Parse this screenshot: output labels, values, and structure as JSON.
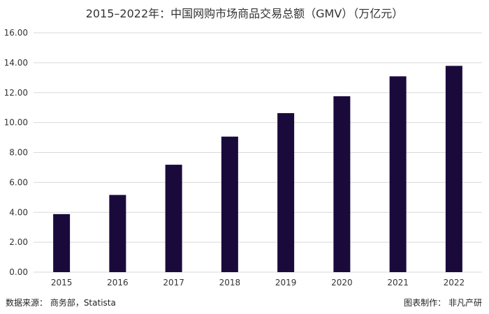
{
  "chart_data": {
    "type": "bar",
    "title": "2015–2022年：中国网购市场商品交易总额（GMV）（万亿元）",
    "categories": [
      "2015",
      "2016",
      "2017",
      "2018",
      "2019",
      "2020",
      "2021",
      "2022"
    ],
    "values": [
      3.88,
      5.16,
      7.18,
      9.06,
      10.63,
      11.76,
      13.09,
      13.79
    ],
    "ylim": [
      0,
      16
    ],
    "yticks": [
      "0.00",
      "2.00",
      "4.00",
      "6.00",
      "8.00",
      "10.00",
      "12.00",
      "14.00",
      "16.00"
    ],
    "ytick_values": [
      0,
      2,
      4,
      6,
      8,
      10,
      12,
      14,
      16
    ],
    "xlabel": "",
    "ylabel": "",
    "grid": true,
    "legend": "none",
    "bar_color": "#1a0a3c",
    "grid_color": "#d9d9d9"
  },
  "footer": {
    "source": "数据来源： 商务部，Statista",
    "credit": "图表制作： 非凡产研"
  }
}
